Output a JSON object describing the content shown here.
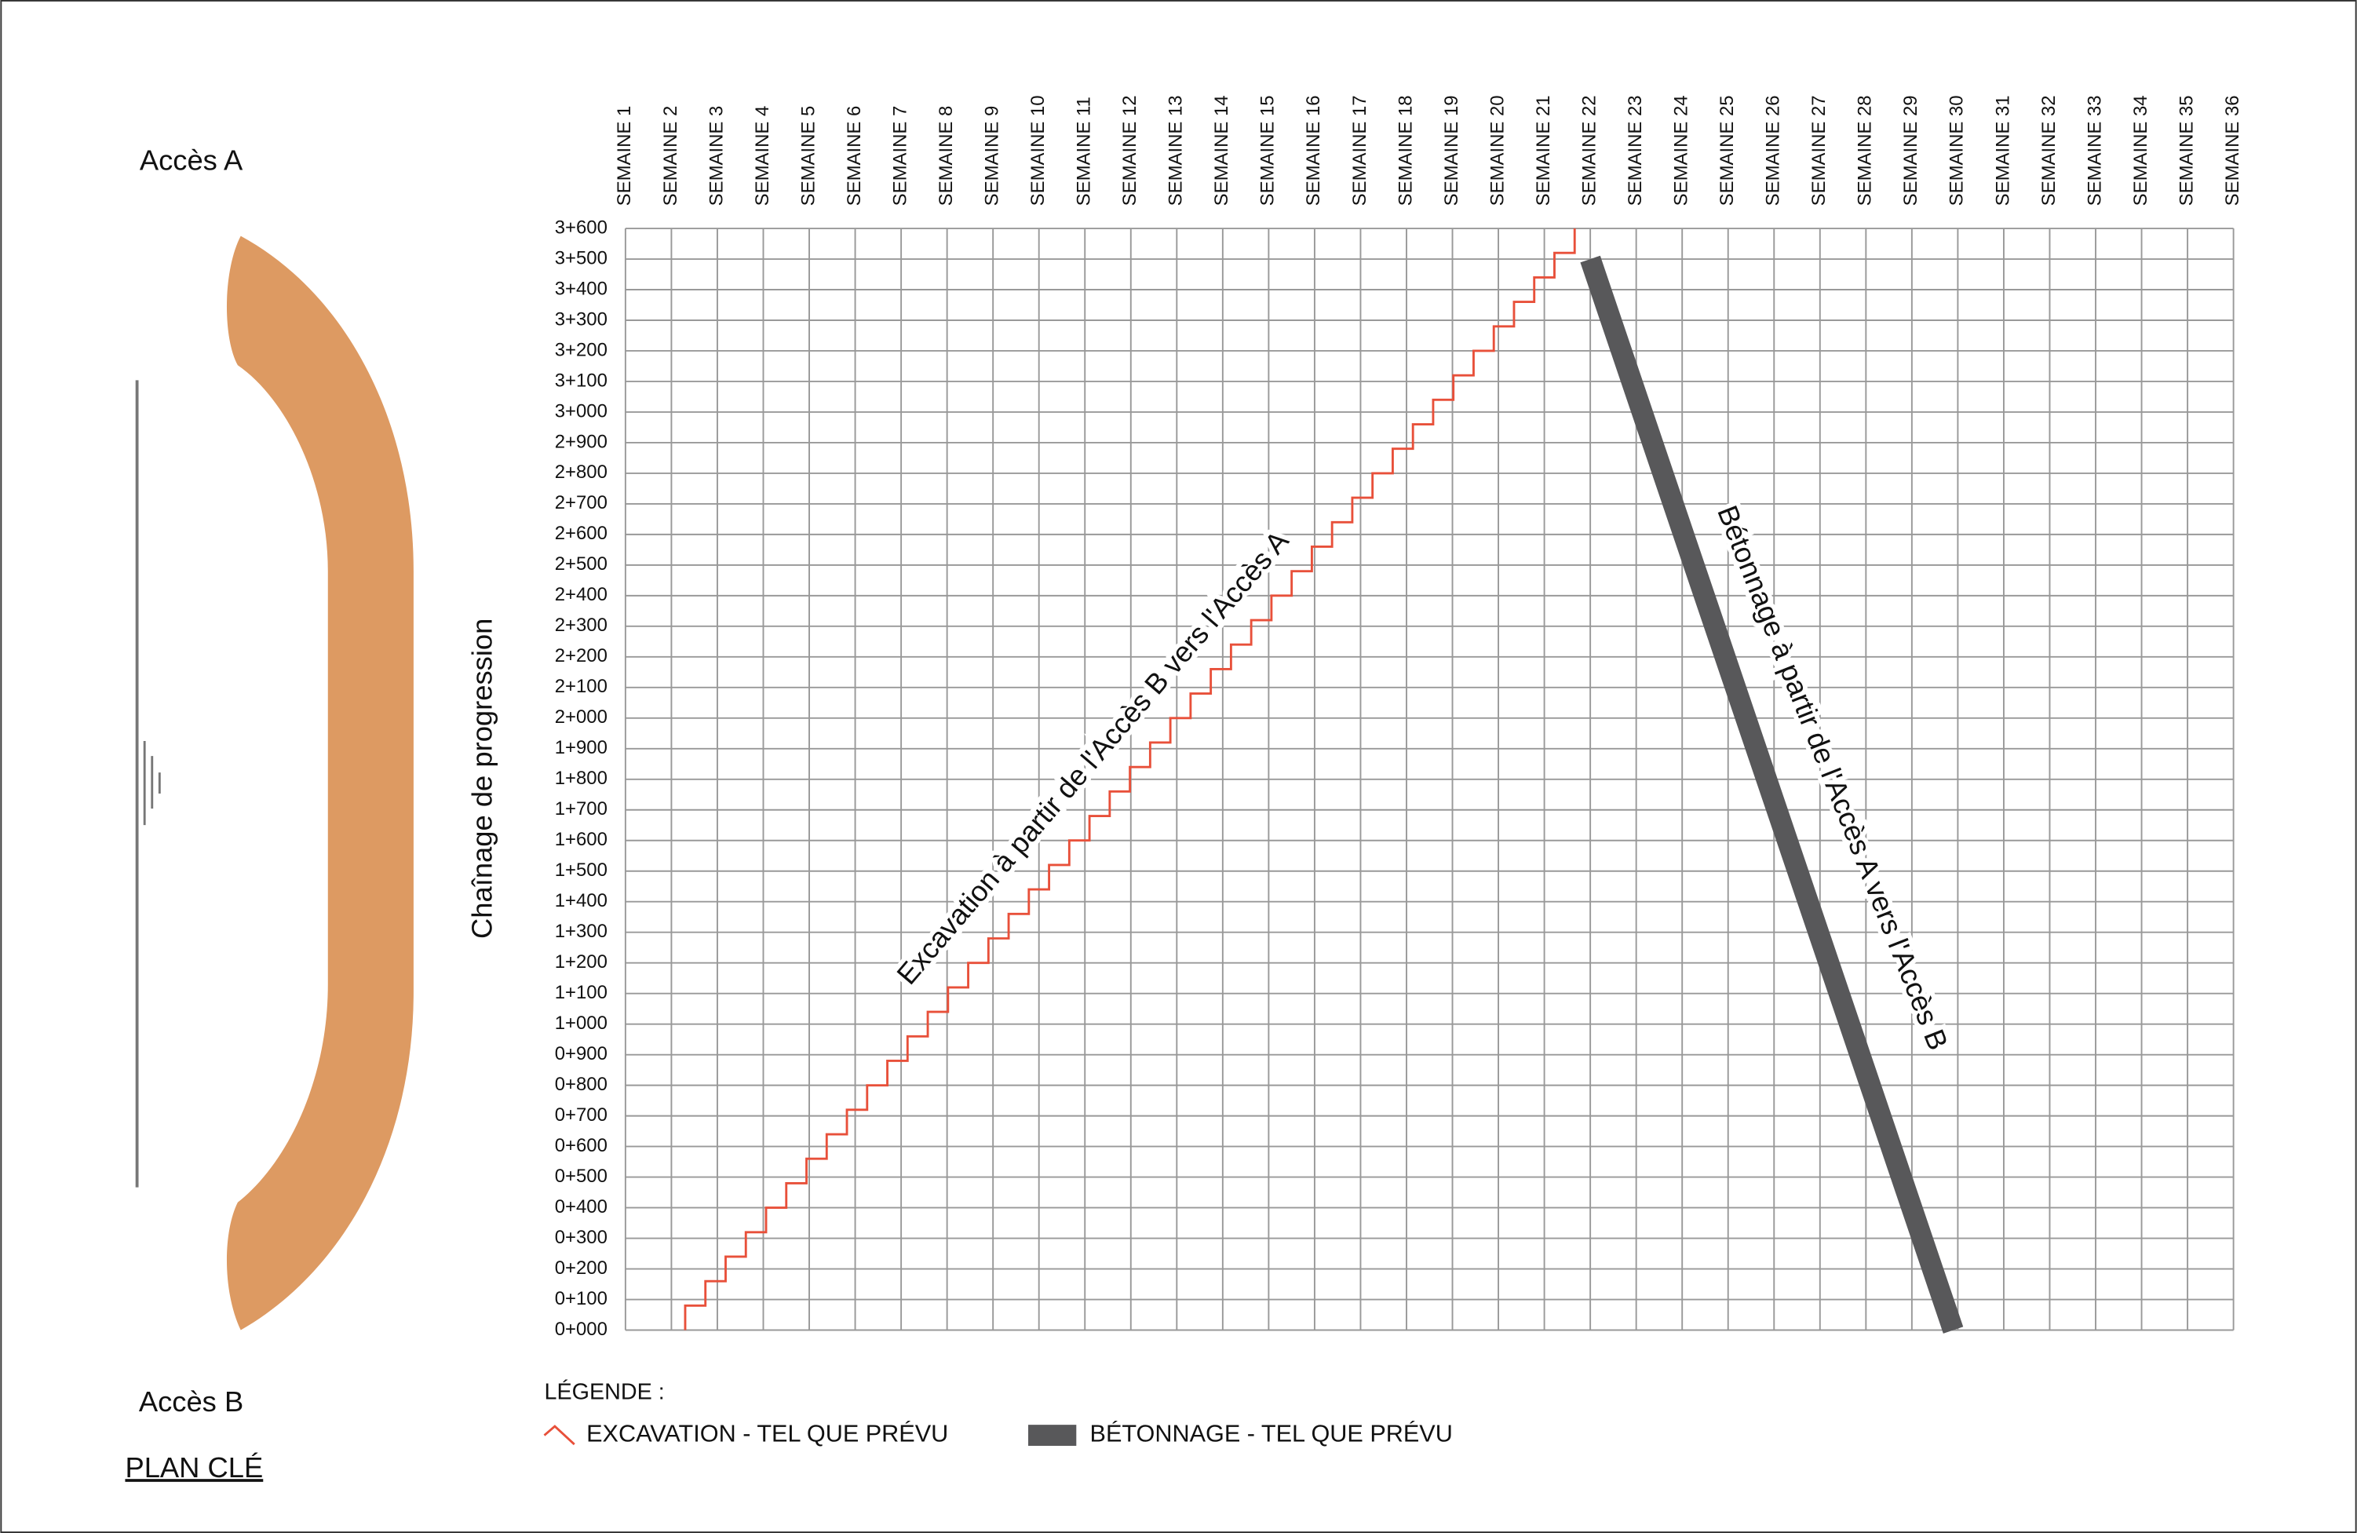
{
  "key_plan": {
    "top_label": "Accès A",
    "bottom_label": "Accès B",
    "title": "PLAN CLÉ"
  },
  "chart_data": {
    "type": "line",
    "y_label": "Chaînage de progression",
    "legend_title": "LÉGENDE :",
    "annotations": [
      "Excavation à partir de l'Accès B vers l'Accès A",
      "Bétonnage à partir de l'Accès A vers l'Accès B"
    ],
    "grid": true,
    "xlim": [
      1,
      36
    ],
    "xticks": [
      {
        "value": 1,
        "label": "SEMAINE 1"
      },
      {
        "value": 2,
        "label": "SEMAINE 2"
      },
      {
        "value": 3,
        "label": "SEMAINE 3"
      },
      {
        "value": 4,
        "label": "SEMAINE 4"
      },
      {
        "value": 5,
        "label": "SEMAINE 5"
      },
      {
        "value": 6,
        "label": "SEMAINE 6"
      },
      {
        "value": 7,
        "label": "SEMAINE 7"
      },
      {
        "value": 8,
        "label": "SEMAINE 8"
      },
      {
        "value": 9,
        "label": "SEMAINE 9"
      },
      {
        "value": 10,
        "label": "SEMAINE 10"
      },
      {
        "value": 11,
        "label": "SEMAINE 11"
      },
      {
        "value": 12,
        "label": "SEMAINE 12"
      },
      {
        "value": 13,
        "label": "SEMAINE 13"
      },
      {
        "value": 14,
        "label": "SEMAINE 14"
      },
      {
        "value": 15,
        "label": "SEMAINE 15"
      },
      {
        "value": 16,
        "label": "SEMAINE 16"
      },
      {
        "value": 17,
        "label": "SEMAINE 17"
      },
      {
        "value": 18,
        "label": "SEMAINE 18"
      },
      {
        "value": 19,
        "label": "SEMAINE 19"
      },
      {
        "value": 20,
        "label": "SEMAINE 20"
      },
      {
        "value": 21,
        "label": "SEMAINE 21"
      },
      {
        "value": 22,
        "label": "SEMAINE 22"
      },
      {
        "value": 23,
        "label": "SEMAINE 23"
      },
      {
        "value": 24,
        "label": "SEMAINE 24"
      },
      {
        "value": 25,
        "label": "SEMAINE 25"
      },
      {
        "value": 26,
        "label": "SEMAINE 26"
      },
      {
        "value": 27,
        "label": "SEMAINE 27"
      },
      {
        "value": 28,
        "label": "SEMAINE 28"
      },
      {
        "value": 29,
        "label": "SEMAINE 29"
      },
      {
        "value": 30,
        "label": "SEMAINE 30"
      },
      {
        "value": 31,
        "label": "SEMAINE 31"
      },
      {
        "value": 32,
        "label": "SEMAINE 32"
      },
      {
        "value": 33,
        "label": "SEMAINE 33"
      },
      {
        "value": 34,
        "label": "SEMAINE 34"
      },
      {
        "value": 35,
        "label": "SEMAINE 35"
      },
      {
        "value": 36,
        "label": "SEMAINE 36"
      }
    ],
    "ylim": [
      0,
      3600
    ],
    "yticks": [
      {
        "value": 0,
        "label": "0+000"
      },
      {
        "value": 100,
        "label": "0+100"
      },
      {
        "value": 200,
        "label": "0+200"
      },
      {
        "value": 300,
        "label": "0+300"
      },
      {
        "value": 400,
        "label": "0+400"
      },
      {
        "value": 500,
        "label": "0+500"
      },
      {
        "value": 600,
        "label": "0+600"
      },
      {
        "value": 700,
        "label": "0+700"
      },
      {
        "value": 800,
        "label": "0+800"
      },
      {
        "value": 900,
        "label": "0+900"
      },
      {
        "value": 1000,
        "label": "1+000"
      },
      {
        "value": 1100,
        "label": "1+100"
      },
      {
        "value": 1200,
        "label": "1+200"
      },
      {
        "value": 1300,
        "label": "1+300"
      },
      {
        "value": 1400,
        "label": "1+400"
      },
      {
        "value": 1500,
        "label": "1+500"
      },
      {
        "value": 1600,
        "label": "1+600"
      },
      {
        "value": 1700,
        "label": "1+700"
      },
      {
        "value": 1800,
        "label": "1+800"
      },
      {
        "value": 1900,
        "label": "1+900"
      },
      {
        "value": 2000,
        "label": "2+000"
      },
      {
        "value": 2100,
        "label": "2+100"
      },
      {
        "value": 2200,
        "label": "2+200"
      },
      {
        "value": 2300,
        "label": "2+300"
      },
      {
        "value": 2400,
        "label": "2+400"
      },
      {
        "value": 2500,
        "label": "2+500"
      },
      {
        "value": 2600,
        "label": "2+600"
      },
      {
        "value": 2700,
        "label": "2+700"
      },
      {
        "value": 2800,
        "label": "2+800"
      },
      {
        "value": 2900,
        "label": "2+900"
      },
      {
        "value": 3000,
        "label": "3+000"
      },
      {
        "value": 3100,
        "label": "3+100"
      },
      {
        "value": 3200,
        "label": "3+200"
      },
      {
        "value": 3300,
        "label": "3+300"
      },
      {
        "value": 3400,
        "label": "3+400"
      },
      {
        "value": 3500,
        "label": "3+500"
      },
      {
        "value": 3600,
        "label": "3+600"
      }
    ],
    "series": [
      {
        "name": "EXCAVATION - TEL QUE PRÉVU",
        "color": "#e8503a",
        "width": 1.5,
        "x": [
          2.3,
          2.3,
          2.74,
          2.74,
          3.18,
          3.18,
          3.62,
          3.62,
          4.06,
          4.06,
          4.5,
          4.5,
          4.94,
          4.94,
          5.38,
          5.38,
          5.82,
          5.82,
          6.26,
          6.26,
          6.7,
          6.7,
          7.14,
          7.14,
          7.58,
          7.58,
          8.02,
          8.02,
          8.46,
          8.46,
          8.9,
          8.9,
          9.34,
          9.34,
          9.78,
          9.78,
          10.22,
          10.22,
          10.66,
          10.66,
          11.1,
          11.1,
          11.54,
          11.54,
          11.98,
          11.98,
          12.42,
          12.42,
          12.86,
          12.86,
          13.3,
          13.3,
          13.74,
          13.74,
          14.18,
          14.18,
          14.62,
          14.62,
          15.06,
          15.06,
          15.5,
          15.5,
          15.94,
          15.94,
          16.38,
          16.38,
          16.82,
          16.82,
          17.26,
          17.26,
          17.7,
          17.7,
          18.14,
          18.14,
          18.58,
          18.58,
          19.02,
          19.02,
          19.46,
          19.46,
          19.9,
          19.9,
          20.34,
          20.34,
          20.78,
          20.78,
          21.22,
          21.22,
          21.66,
          21.66
        ],
        "values": [
          0,
          80,
          80,
          160,
          160,
          240,
          240,
          320,
          320,
          400,
          400,
          480,
          480,
          560,
          560,
          640,
          640,
          720,
          720,
          800,
          800,
          880,
          880,
          960,
          960,
          1040,
          1040,
          1120,
          1120,
          1200,
          1200,
          1280,
          1280,
          1360,
          1360,
          1440,
          1440,
          1520,
          1520,
          1600,
          1600,
          1680,
          1680,
          1760,
          1760,
          1840,
          1840,
          1920,
          1920,
          2000,
          2000,
          2080,
          2080,
          2160,
          2160,
          2240,
          2240,
          2320,
          2320,
          2400,
          2400,
          2480,
          2480,
          2560,
          2560,
          2640,
          2640,
          2720,
          2720,
          2800,
          2800,
          2880,
          2880,
          2960,
          2960,
          3040,
          3040,
          3120,
          3120,
          3200,
          3200,
          3280,
          3280,
          3360,
          3360,
          3440,
          3440,
          3520,
          3520,
          3600
        ]
      },
      {
        "name": "BÉTONNAGE - TEL QUE PRÉVU",
        "color": "#58585a",
        "width": 14,
        "x": [
          22.0,
          29.9
        ],
        "values": [
          3500,
          0
        ]
      }
    ]
  }
}
